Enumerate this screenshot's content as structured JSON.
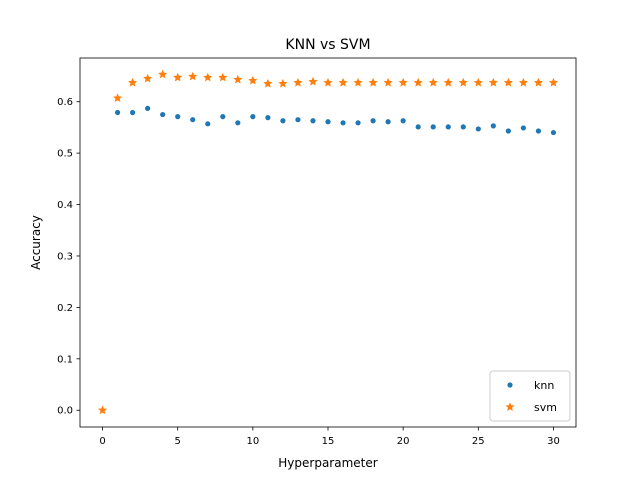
{
  "chart_data": {
    "type": "scatter",
    "title": "KNN vs SVM",
    "xlabel": "Hyperparameter",
    "ylabel": "Accuracy",
    "xlim": [
      -1.5,
      31.5
    ],
    "ylim": [
      -0.0326,
      0.685
    ],
    "xticks": [
      0,
      5,
      10,
      15,
      20,
      25,
      30
    ],
    "xtick_labels": [
      "0",
      "5",
      "10",
      "15",
      "20",
      "25",
      "30"
    ],
    "yticks": [
      0.0,
      0.1,
      0.2,
      0.3,
      0.4,
      0.5,
      0.6
    ],
    "ytick_labels": [
      "0.0",
      "0.1",
      "0.2",
      "0.3",
      "0.4",
      "0.5",
      "0.6"
    ],
    "grid": false,
    "legend_position": "lower-right",
    "series": [
      {
        "name": "knn",
        "marker": "dot",
        "color": "#1f77b4",
        "x": [
          1,
          2,
          3,
          4,
          5,
          6,
          7,
          8,
          9,
          10,
          11,
          12,
          13,
          14,
          15,
          16,
          17,
          18,
          19,
          20,
          21,
          22,
          23,
          24,
          25,
          26,
          27,
          28,
          29,
          30
        ],
        "y": [
          0.579,
          0.579,
          0.587,
          0.575,
          0.571,
          0.565,
          0.557,
          0.571,
          0.559,
          0.571,
          0.569,
          0.563,
          0.565,
          0.563,
          0.561,
          0.559,
          0.559,
          0.563,
          0.561,
          0.563,
          0.551,
          0.551,
          0.551,
          0.551,
          0.547,
          0.553,
          0.543,
          0.549,
          0.543,
          0.54
        ]
      },
      {
        "name": "svm",
        "marker": "star",
        "color": "#ff7f0e",
        "x": [
          0,
          1,
          2,
          3,
          4,
          5,
          6,
          7,
          8,
          9,
          10,
          11,
          12,
          13,
          14,
          15,
          16,
          17,
          18,
          19,
          20,
          21,
          22,
          23,
          24,
          25,
          26,
          27,
          28,
          29,
          30
        ],
        "y": [
          0.0,
          0.607,
          0.637,
          0.645,
          0.653,
          0.647,
          0.649,
          0.647,
          0.647,
          0.643,
          0.641,
          0.635,
          0.635,
          0.637,
          0.639,
          0.637,
          0.637,
          0.637,
          0.637,
          0.637,
          0.637,
          0.637,
          0.637,
          0.637,
          0.637,
          0.637,
          0.637,
          0.637,
          0.637,
          0.637,
          0.637
        ]
      }
    ]
  }
}
